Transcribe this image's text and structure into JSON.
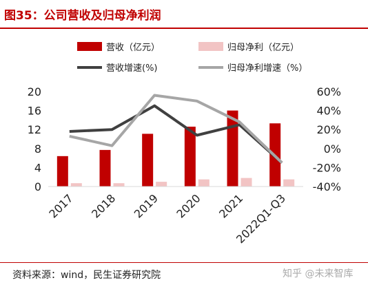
{
  "header": {
    "title": "图35：公司营收及归母净利润"
  },
  "footer": {
    "source": "资料来源：wind，民生证券研究院",
    "watermark": "知乎 @未来智库"
  },
  "colors": {
    "revenue": "#c00000",
    "profit": "#f2c4c4",
    "revenue_growth": "#404040",
    "profit_growth": "#a6a6a6",
    "accent": "#c00000"
  },
  "chart_data": {
    "type": "bar",
    "categories": [
      "2017",
      "2018",
      "2019",
      "2020",
      "2021",
      "2022Q1-Q3"
    ],
    "series": [
      {
        "name": "营收（亿元）",
        "kind": "bar",
        "axis": "left",
        "values": [
          6.4,
          7.7,
          11.1,
          12.6,
          16.0,
          13.3
        ]
      },
      {
        "name": "归母净利（亿元）",
        "kind": "bar",
        "axis": "left",
        "values": [
          0.7,
          0.7,
          1.0,
          1.5,
          1.8,
          1.5
        ]
      },
      {
        "name": "营收增速(%)",
        "kind": "line",
        "axis": "right",
        "values": [
          18,
          20,
          45,
          14,
          25,
          -15
        ]
      },
      {
        "name": "归母净利增速（%）",
        "kind": "line",
        "axis": "right",
        "values": [
          13,
          3,
          56,
          50,
          28,
          -15
        ]
      }
    ],
    "left_axis": {
      "ylim": [
        0,
        20
      ],
      "ticks": [
        "0",
        "4",
        "8",
        "12",
        "16",
        "20"
      ]
    },
    "right_axis": {
      "ylim": [
        -40,
        60
      ],
      "ticks": [
        "-40%",
        "-20%",
        "0%",
        "20%",
        "40%",
        "60%"
      ]
    },
    "grid": false,
    "legend": "top"
  }
}
